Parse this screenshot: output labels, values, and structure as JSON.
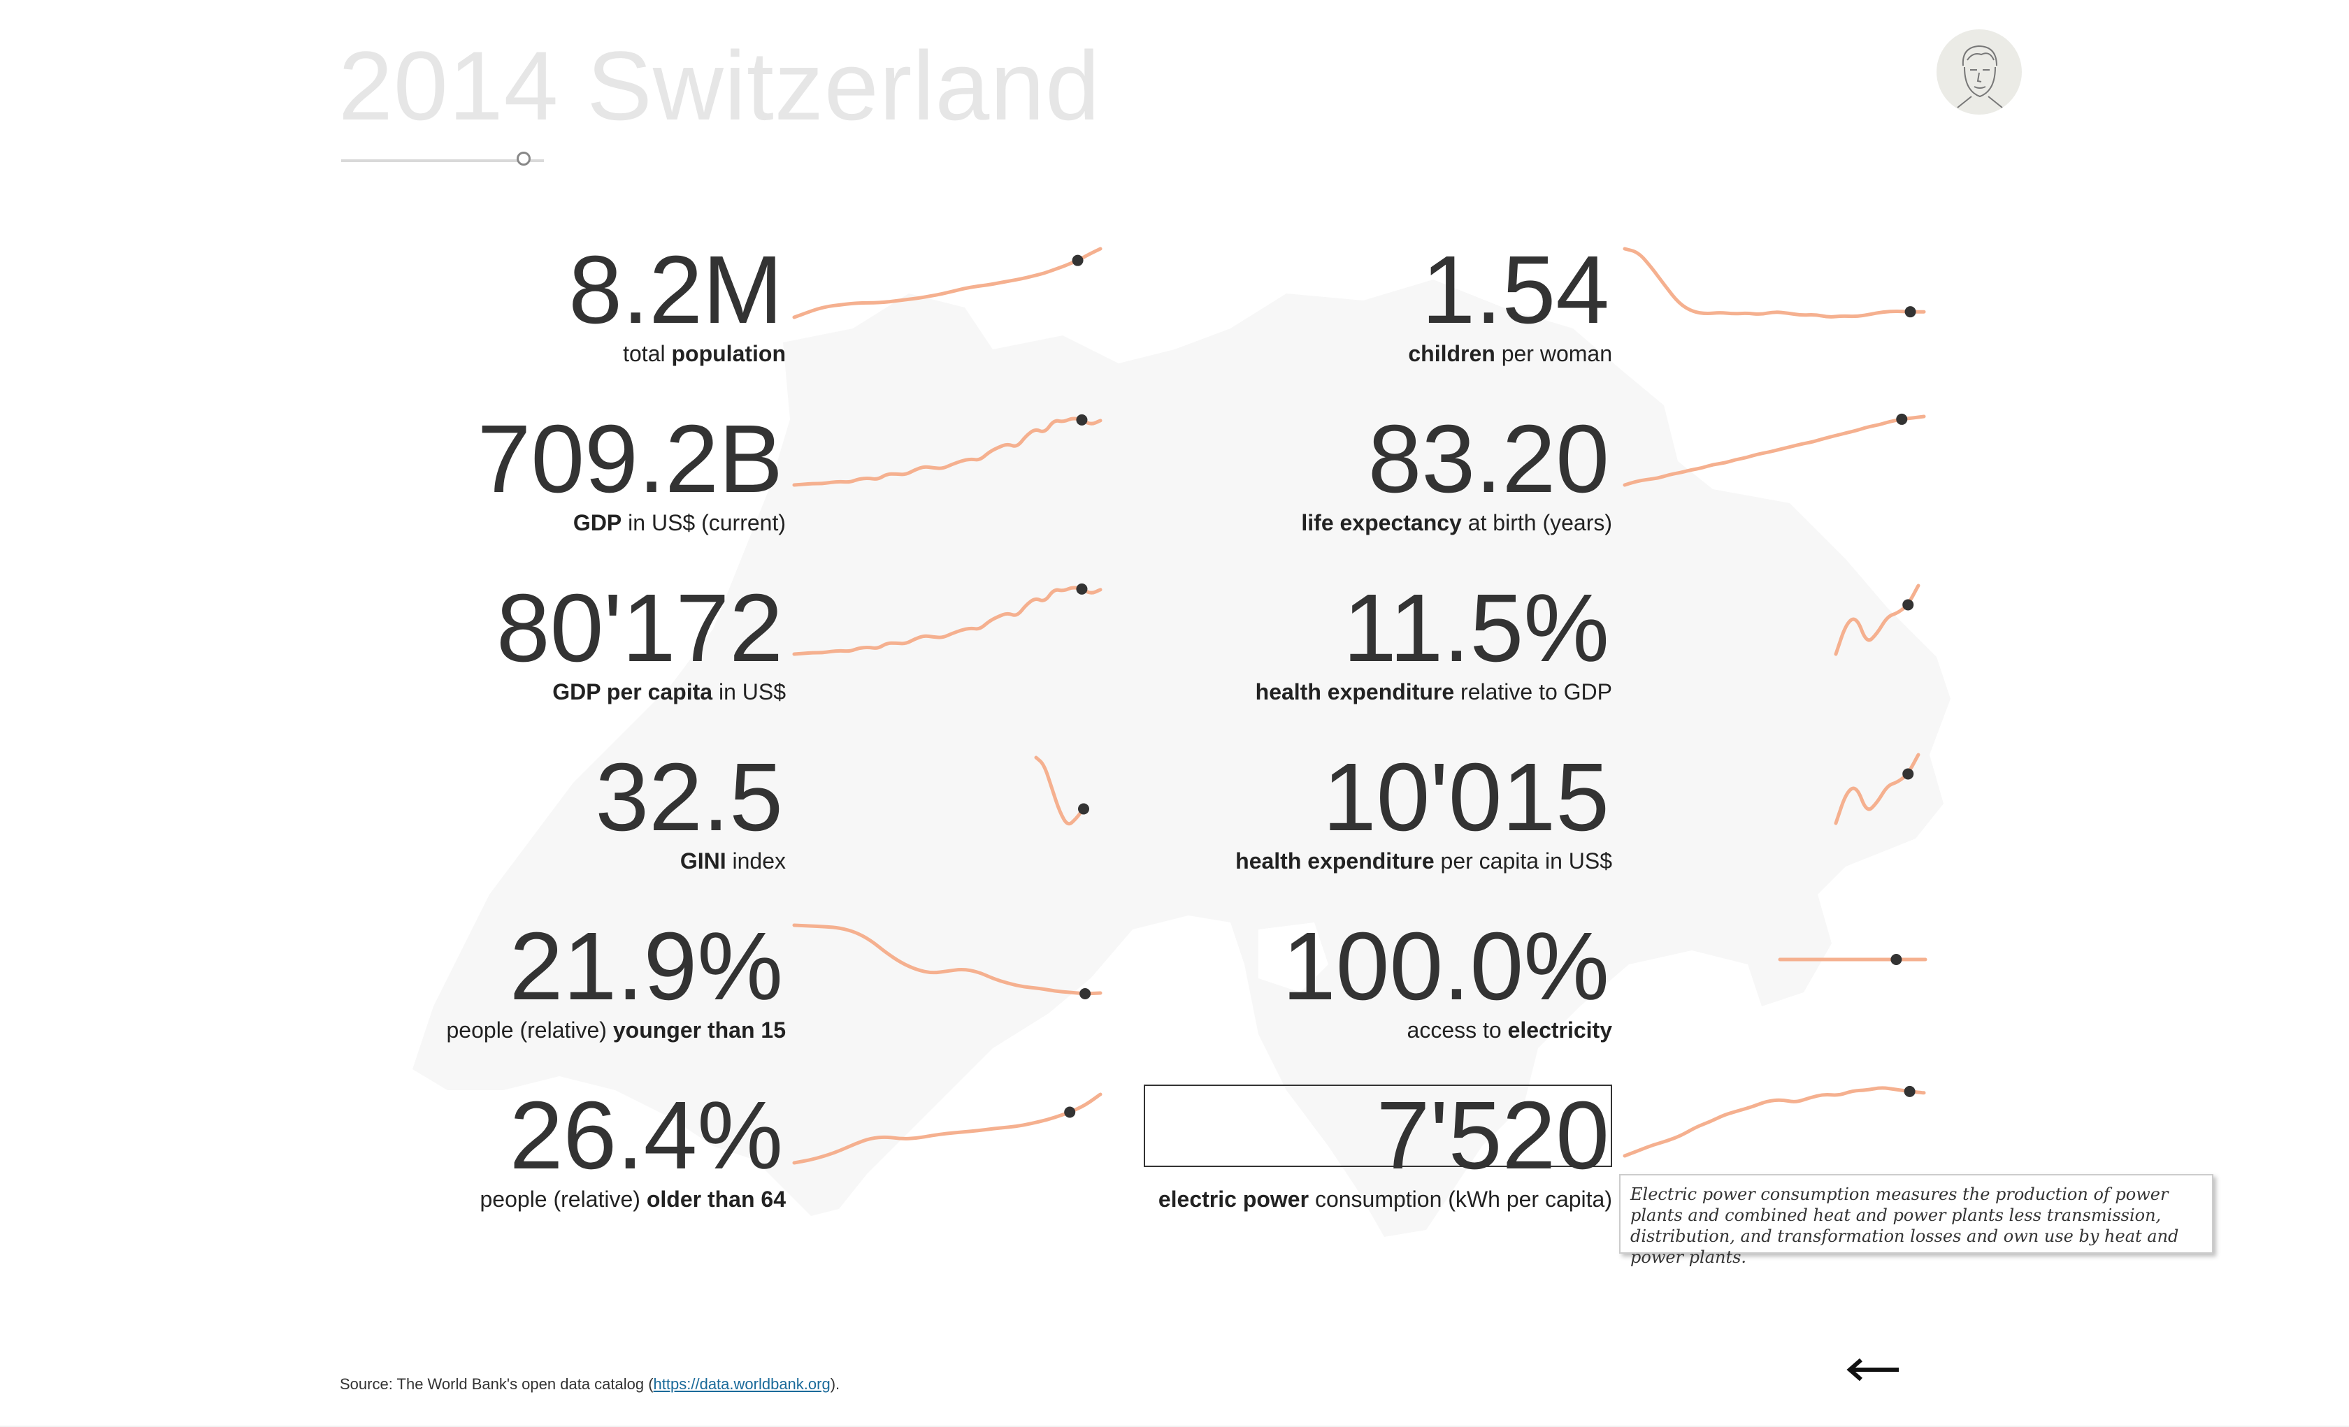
{
  "header": {
    "year": "2014",
    "country": "Switzerland"
  },
  "slider": {
    "position": 0.9
  },
  "colors": {
    "sparkline": "#f5b08f",
    "dot": "#333333",
    "map": "#f7f7f7",
    "title": "#e6e6e6"
  },
  "indicators": [
    {
      "value": "8.2M",
      "label_bold_first": "",
      "label_normal_1": "total ",
      "label_bold_2": "population",
      "label_normal_2": "",
      "series": [
        0.0,
        0.06,
        0.12,
        0.16,
        0.18,
        0.2,
        0.21,
        0.21,
        0.22,
        0.24,
        0.26,
        0.28,
        0.31,
        0.34,
        0.38,
        0.42,
        0.45,
        0.47,
        0.5,
        0.53,
        0.56,
        0.6,
        0.64,
        0.7,
        0.76,
        0.83,
        0.92,
        1.0
      ],
      "highlight_index": 25
    },
    {
      "value": "709.2B",
      "label_bold_first": "GDP",
      "label_normal_1": " in US$ (current)",
      "label_bold_2": "",
      "label_normal_2": "",
      "series": [
        0.0,
        0.01,
        0.02,
        0.02,
        0.04,
        0.05,
        0.04,
        0.09,
        0.1,
        0.08,
        0.16,
        0.16,
        0.15,
        0.22,
        0.27,
        0.25,
        0.24,
        0.3,
        0.35,
        0.38,
        0.36,
        0.48,
        0.55,
        0.6,
        0.55,
        0.72,
        0.82,
        0.76,
        0.95,
        0.92,
        0.98,
        0.95,
        0.88,
        0.94
      ],
      "highlight_index": 31
    },
    {
      "value": "80'172",
      "label_bold_first": "GDP per capita",
      "label_normal_1": " in US$",
      "label_bold_2": "",
      "label_normal_2": "",
      "series": [
        0.0,
        0.01,
        0.02,
        0.02,
        0.04,
        0.05,
        0.04,
        0.09,
        0.1,
        0.08,
        0.16,
        0.16,
        0.15,
        0.22,
        0.27,
        0.25,
        0.24,
        0.3,
        0.35,
        0.38,
        0.36,
        0.48,
        0.55,
        0.6,
        0.55,
        0.72,
        0.82,
        0.76,
        0.95,
        0.92,
        0.98,
        0.95,
        0.88,
        0.94
      ],
      "highlight_index": 31
    },
    {
      "value": "32.5",
      "label_bold_first": "GINI",
      "label_normal_1": " index",
      "label_bold_2": "",
      "label_normal_2": "",
      "series": [
        1.0,
        0.9,
        0.55,
        0.2,
        0.0,
        0.1,
        0.25
      ],
      "highlight_index": 6
    },
    {
      "value": "21.9%",
      "label_bold_first": "",
      "label_normal_1": "people (relative) ",
      "label_bold_2": "younger than 15",
      "label_normal_2": "",
      "series": [
        1.0,
        0.99,
        0.98,
        0.96,
        0.9,
        0.78,
        0.6,
        0.45,
        0.35,
        0.3,
        0.33,
        0.36,
        0.32,
        0.22,
        0.15,
        0.1,
        0.08,
        0.04,
        0.02,
        0.0,
        0.01
      ],
      "highlight_index": 19
    },
    {
      "value": "26.4%",
      "label_bold_first": "",
      "label_normal_1": "people (relative) ",
      "label_bold_2": "older than 64",
      "label_normal_2": "",
      "series": [
        0.0,
        0.04,
        0.1,
        0.18,
        0.28,
        0.36,
        0.38,
        0.35,
        0.36,
        0.4,
        0.43,
        0.45,
        0.47,
        0.5,
        0.52,
        0.55,
        0.6,
        0.66,
        0.74,
        0.84,
        1.0
      ],
      "highlight_index": 18
    },
    {
      "value": "1.54",
      "label_bold_first": "children",
      "label_normal_1": " per woman",
      "label_bold_2": "",
      "label_normal_2": "",
      "series": [
        1.0,
        0.95,
        0.72,
        0.45,
        0.2,
        0.08,
        0.05,
        0.07,
        0.05,
        0.06,
        0.04,
        0.08,
        0.06,
        0.03,
        0.04,
        0.0,
        0.02,
        0.01,
        0.04,
        0.08,
        0.09,
        0.08,
        0.08
      ],
      "highlight_index": 21
    },
    {
      "value": "83.20",
      "label_bold_first": "life expectancy",
      "label_normal_1": " at birth (years)",
      "label_bold_2": "",
      "label_normal_2": "",
      "series": [
        0.0,
        0.05,
        0.08,
        0.1,
        0.15,
        0.18,
        0.22,
        0.25,
        0.3,
        0.32,
        0.37,
        0.4,
        0.45,
        0.48,
        0.52,
        0.56,
        0.6,
        0.63,
        0.68,
        0.72,
        0.76,
        0.8,
        0.85,
        0.88,
        0.93,
        0.96,
        0.98,
        1.0
      ],
      "highlight_index": 25
    },
    {
      "value": "11.5%",
      "label_bold_first": "health expenditure",
      "label_normal_1": " relative to GDP",
      "label_bold_2": "",
      "label_normal_2": "",
      "series": [
        0.0,
        0.45,
        0.55,
        0.15,
        0.3,
        0.55,
        0.6,
        0.72,
        1.0
      ],
      "highlight_index": 7
    },
    {
      "value": "10'015",
      "label_bold_first": "health expenditure",
      "label_normal_1": " per capita in US$",
      "label_bold_2": "",
      "label_normal_2": "",
      "series": [
        0.0,
        0.45,
        0.55,
        0.15,
        0.3,
        0.55,
        0.6,
        0.72,
        1.0
      ],
      "highlight_index": 7
    },
    {
      "value": "100.0%",
      "label_bold_first": "",
      "label_normal_1": "access to ",
      "label_bold_2": "electricity",
      "label_normal_2": "",
      "series": [
        0.5,
        0.5,
        0.5,
        0.5,
        0.5,
        0.5
      ],
      "highlight_index": 4
    },
    {
      "value": "7'520",
      "label_bold_first": "electric power",
      "label_normal_1": " consumption (kWh per capita)",
      "label_bold_2": "",
      "label_normal_2": "",
      "series": [
        0.0,
        0.08,
        0.16,
        0.22,
        0.3,
        0.42,
        0.5,
        0.6,
        0.66,
        0.72,
        0.8,
        0.82,
        0.78,
        0.85,
        0.9,
        0.88,
        0.95,
        0.96,
        1.0,
        0.97,
        0.94,
        0.92
      ],
      "highlight_index": 20
    }
  ],
  "tooltip": {
    "text": "Electric power consumption measures the production of power plants and combined heat and power plants less transmission, distribution, and transformation losses and own use by heat and power plants."
  },
  "footer": {
    "source_prefix": "Source: The World Bank's open data catalog (",
    "source_link": "https://data.worldbank.org",
    "source_suffix": ")."
  },
  "nav": {
    "back_icon": "left-arrow-icon"
  }
}
